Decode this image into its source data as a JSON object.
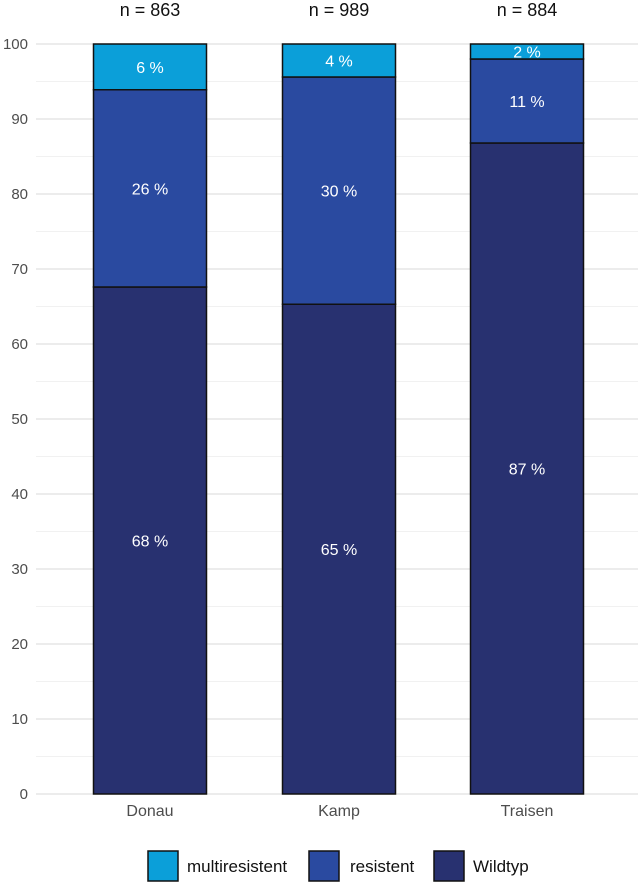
{
  "chart_data": {
    "type": "bar",
    "stacked": true,
    "categories": [
      "Donau",
      "Kamp",
      "Traisen"
    ],
    "top_labels": [
      "n = 863",
      "n = 989",
      "n = 884"
    ],
    "series": [
      {
        "name": "Wildtyp",
        "values": [
          67.6,
          65.3,
          86.8
        ],
        "labels": [
          "68 %",
          "65 %",
          "87 %"
        ],
        "color": "#283170"
      },
      {
        "name": "resistent",
        "values": [
          26.3,
          30.3,
          11.2
        ],
        "labels": [
          "26 %",
          "30 %",
          "11 %"
        ],
        "color": "#2a4aa0"
      },
      {
        "name": "multiresistent",
        "values": [
          6.1,
          4.4,
          2.0
        ],
        "labels": [
          "6 %",
          "4 %",
          "2 %"
        ],
        "color": "#0b9fd9"
      }
    ],
    "legend_order": [
      "multiresistent",
      "resistent",
      "Wildtyp"
    ],
    "ylim": [
      0,
      100
    ],
    "yticks": [
      0,
      10,
      20,
      30,
      40,
      50,
      60,
      70,
      80,
      90,
      100
    ],
    "xlabel": "",
    "ylabel": "",
    "grid": true,
    "legend_position": "bottom"
  }
}
